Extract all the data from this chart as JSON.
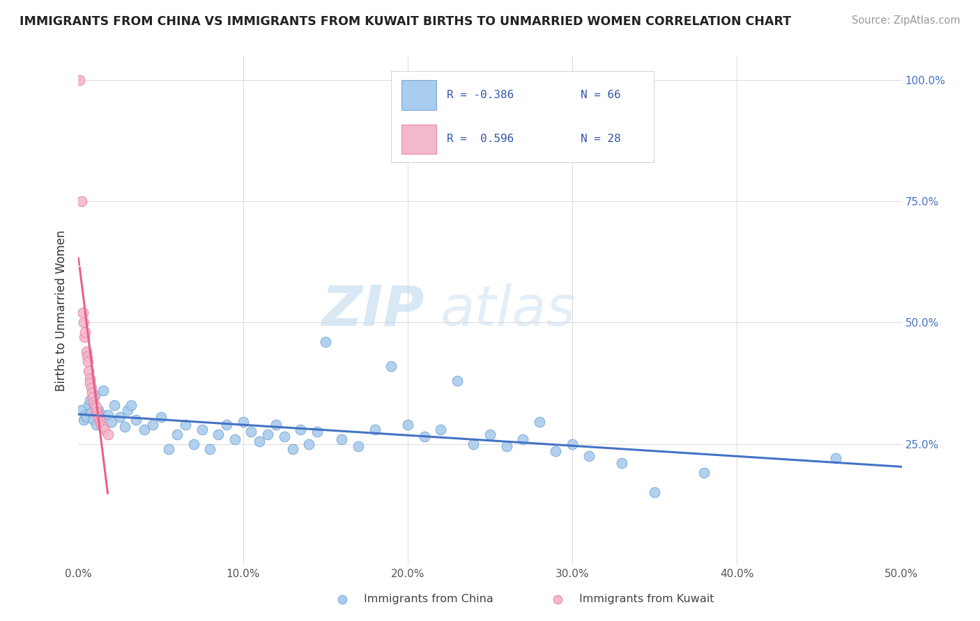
{
  "title": "IMMIGRANTS FROM CHINA VS IMMIGRANTS FROM KUWAIT BIRTHS TO UNMARRIED WOMEN CORRELATION CHART",
  "source": "Source: ZipAtlas.com",
  "ylabel": "Births to Unmarried Women",
  "xlim": [
    0,
    50
  ],
  "ylim": [
    0,
    105
  ],
  "china_color": "#aaccee",
  "china_edge": "#7aaad4",
  "china_line_color": "#4472c4",
  "kuwait_color": "#f4b8cc",
  "kuwait_edge": "#e888a8",
  "kuwait_line_color": "#e8608a",
  "watermark_zip": "ZIP",
  "watermark_atlas": "atlas",
  "china_points": [
    [
      0.2,
      32.0
    ],
    [
      0.3,
      30.0
    ],
    [
      0.4,
      31.0
    ],
    [
      0.5,
      30.5
    ],
    [
      0.6,
      33.0
    ],
    [
      0.7,
      34.0
    ],
    [
      0.8,
      31.5
    ],
    [
      0.9,
      30.0
    ],
    [
      1.0,
      35.0
    ],
    [
      1.1,
      29.0
    ],
    [
      1.2,
      32.0
    ],
    [
      1.3,
      30.0
    ],
    [
      1.4,
      31.0
    ],
    [
      1.5,
      36.0
    ],
    [
      1.6,
      28.0
    ],
    [
      1.8,
      31.0
    ],
    [
      2.0,
      29.5
    ],
    [
      2.2,
      33.0
    ],
    [
      2.5,
      30.5
    ],
    [
      2.8,
      28.5
    ],
    [
      3.0,
      32.0
    ],
    [
      3.2,
      33.0
    ],
    [
      3.5,
      30.0
    ],
    [
      4.0,
      28.0
    ],
    [
      4.5,
      29.0
    ],
    [
      5.0,
      30.5
    ],
    [
      5.5,
      24.0
    ],
    [
      6.0,
      27.0
    ],
    [
      6.5,
      29.0
    ],
    [
      7.0,
      25.0
    ],
    [
      7.5,
      28.0
    ],
    [
      8.0,
      24.0
    ],
    [
      8.5,
      27.0
    ],
    [
      9.0,
      29.0
    ],
    [
      9.5,
      26.0
    ],
    [
      10.0,
      29.5
    ],
    [
      10.5,
      27.5
    ],
    [
      11.0,
      25.5
    ],
    [
      11.5,
      27.0
    ],
    [
      12.0,
      29.0
    ],
    [
      12.5,
      26.5
    ],
    [
      13.0,
      24.0
    ],
    [
      13.5,
      28.0
    ],
    [
      14.0,
      25.0
    ],
    [
      14.5,
      27.5
    ],
    [
      15.0,
      46.0
    ],
    [
      16.0,
      26.0
    ],
    [
      17.0,
      24.5
    ],
    [
      18.0,
      28.0
    ],
    [
      19.0,
      41.0
    ],
    [
      20.0,
      29.0
    ],
    [
      21.0,
      26.5
    ],
    [
      22.0,
      28.0
    ],
    [
      23.0,
      38.0
    ],
    [
      24.0,
      25.0
    ],
    [
      25.0,
      27.0
    ],
    [
      26.0,
      24.5
    ],
    [
      27.0,
      26.0
    ],
    [
      28.0,
      29.5
    ],
    [
      29.0,
      23.5
    ],
    [
      30.0,
      25.0
    ],
    [
      31.0,
      22.5
    ],
    [
      33.0,
      21.0
    ],
    [
      35.0,
      15.0
    ],
    [
      38.0,
      19.0
    ],
    [
      46.0,
      22.0
    ]
  ],
  "kuwait_points": [
    [
      0.08,
      100.0
    ],
    [
      0.18,
      75.0
    ],
    [
      0.28,
      52.0
    ],
    [
      0.32,
      50.0
    ],
    [
      0.38,
      47.0
    ],
    [
      0.42,
      48.0
    ],
    [
      0.48,
      44.0
    ],
    [
      0.52,
      43.0
    ],
    [
      0.58,
      42.0
    ],
    [
      0.62,
      40.0
    ],
    [
      0.68,
      38.5
    ],
    [
      0.72,
      37.5
    ],
    [
      0.78,
      36.5
    ],
    [
      0.82,
      35.5
    ],
    [
      0.88,
      34.5
    ],
    [
      0.92,
      33.5
    ],
    [
      0.98,
      33.0
    ],
    [
      1.02,
      32.0
    ],
    [
      1.08,
      32.5
    ],
    [
      1.12,
      31.5
    ],
    [
      1.18,
      31.0
    ],
    [
      1.22,
      30.5
    ],
    [
      1.28,
      30.0
    ],
    [
      1.32,
      29.5
    ],
    [
      1.38,
      29.0
    ],
    [
      1.48,
      28.5
    ],
    [
      1.58,
      28.0
    ],
    [
      1.78,
      27.0
    ]
  ],
  "kuwait_line_x_start": 0.0,
  "kuwait_line_x_solid_start": 0.08,
  "kuwait_line_x_end": 1.78,
  "china_line_x_start": 0.0,
  "china_line_x_end": 50.0
}
